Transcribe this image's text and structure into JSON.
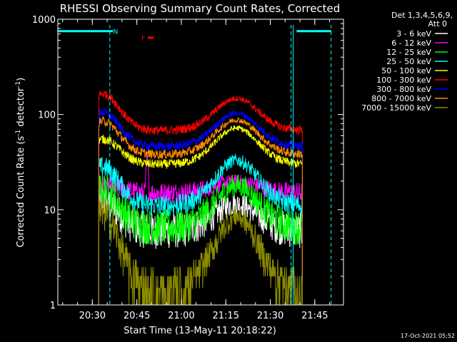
{
  "chart_data": {
    "type": "line",
    "title": "RHESSI Observing Summary Count Rates, Corrected",
    "xlabel": "Start Time (13-May-11 20:18:22)",
    "ylabel_main": "Corrected Count Rate (s",
    "ylabel_sup1": "-1",
    "ylabel_mid": " detector",
    "ylabel_sup2": "-1",
    "ylabel_end": ")",
    "yscale": "log",
    "ylim": [
      1,
      1000
    ],
    "xlim": [
      20.3061,
      21.9111
    ],
    "x_ticks": [
      {
        "v": 20.5,
        "label": "20:30"
      },
      {
        "v": 20.75,
        "label": "20:45"
      },
      {
        "v": 21.0,
        "label": "21:00"
      },
      {
        "v": 21.25,
        "label": "21:15"
      },
      {
        "v": 21.5,
        "label": "21:30"
      },
      {
        "v": 21.75,
        "label": "21:45"
      }
    ],
    "y_ticks": [
      {
        "v": 1,
        "label": "1"
      },
      {
        "v": 10,
        "label": "10"
      },
      {
        "v": 100,
        "label": "100"
      },
      {
        "v": 1000,
        "label": "1000"
      }
    ],
    "legend_header": [
      "Det 1,3,4,5,6,9,",
      "Att 0"
    ],
    "legend_position": "right",
    "timestamp": "17-Oct-2021 05:52",
    "bars": [
      {
        "label": "",
        "start": 20.3061,
        "end": 20.5983,
        "value": 750,
        "color": "#00ffff"
      },
      {
        "label": "N",
        "start": 20.5983,
        "end": 20.6161,
        "value": 750,
        "color": "#00ffff"
      },
      {
        "label": "",
        "start": 21.6478,
        "end": 21.8417,
        "value": 750,
        "color": "#00ffff"
      },
      {
        "label": "F",
        "start": 20.8111,
        "end": 20.8444,
        "value": 640,
        "color": "#ff0000"
      }
    ],
    "vlines": [
      20.5983,
      21.6167,
      21.8417
    ],
    "obs_start": 20.5361,
    "obs_end": 21.68,
    "spike": {
      "series": "6 - 12 keV",
      "x": 20.8083,
      "peak": 40
    },
    "series": [
      {
        "name": "3 - 6 keV",
        "color": "#ffffff",
        "base": 6,
        "peak": 11.5,
        "early": 12
      },
      {
        "name": "6 - 12 keV",
        "color": "#ff00ff",
        "base": 15,
        "peak": 20,
        "early": 18
      },
      {
        "name": "12 - 25 keV",
        "color": "#00ff00",
        "base": 6.5,
        "peak": 18,
        "early": 16
      },
      {
        "name": "25 - 50 keV",
        "color": "#00ffff",
        "base": 11,
        "peak": 33,
        "early": 28
      },
      {
        "name": "50 - 100 keV",
        "color": "#ffff00",
        "base": 30,
        "peak": 72,
        "early": 55
      },
      {
        "name": "100 - 300 keV",
        "color": "#ff0000",
        "base": 68,
        "peak": 148,
        "early": 165
      },
      {
        "name": "300 - 800 keV",
        "color": "#0000ff",
        "base": 46,
        "peak": 103,
        "early": 105
      },
      {
        "name": "800 - 7000 keV",
        "color": "#ff8c00",
        "base": 38,
        "peak": 88,
        "early": 85
      },
      {
        "name": "7000 - 15000 keV",
        "color": "#8c8c00",
        "base": 1.5,
        "peak": 8.5,
        "early": 9
      }
    ]
  }
}
